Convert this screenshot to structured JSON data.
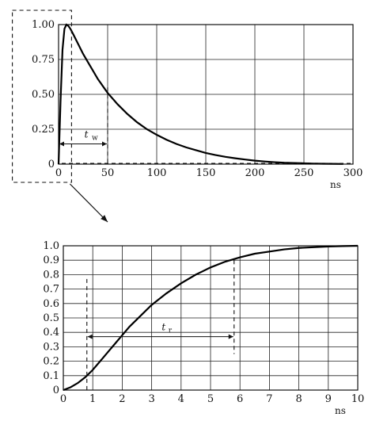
{
  "chart_data": [
    {
      "type": "line",
      "title": "",
      "xlabel": "ns",
      "ylabel": "",
      "xlim": [
        0,
        300
      ],
      "ylim": [
        0,
        1.0
      ],
      "x_ticks": [
        "0",
        "50",
        "100",
        "150",
        "200",
        "250",
        "300"
      ],
      "y_ticks": [
        "0",
        "0.25",
        "0.50",
        "0.75",
        "1.00"
      ],
      "grid": true,
      "annotation": "t",
      "annotation_sub": "w",
      "annotation_range": [
        0,
        50
      ],
      "zoom_region_x": [
        -10,
        10
      ],
      "series": [
        {
          "x": [
            0,
            2,
            4,
            6,
            8,
            10,
            12,
            15,
            20,
            25,
            30,
            35,
            40,
            45,
            50,
            60,
            70,
            80,
            90,
            100,
            110,
            120,
            130,
            140,
            150,
            160,
            170,
            180,
            190,
            200,
            210,
            220,
            230,
            240,
            250,
            260,
            270,
            280,
            290
          ],
          "y": [
            0,
            0.45,
            0.82,
            0.97,
            1.0,
            0.99,
            0.97,
            0.93,
            0.86,
            0.79,
            0.73,
            0.67,
            0.61,
            0.56,
            0.51,
            0.43,
            0.36,
            0.3,
            0.25,
            0.21,
            0.175,
            0.145,
            0.12,
            0.1,
            0.08,
            0.065,
            0.052,
            0.042,
            0.033,
            0.025,
            0.019,
            0.014,
            0.01,
            0.008,
            0.006,
            0.004,
            0.003,
            0.002,
            0.001
          ]
        }
      ]
    },
    {
      "type": "line",
      "title": "",
      "xlabel": "ns",
      "ylabel": "",
      "xlim": [
        0,
        10
      ],
      "ylim": [
        0,
        1.0
      ],
      "x_ticks": [
        "0",
        "1",
        "2",
        "3",
        "4",
        "5",
        "6",
        "7",
        "8",
        "9",
        "10"
      ],
      "y_ticks": [
        "0",
        "0.1",
        "0.2",
        "0.3",
        "0.4",
        "0.5",
        "0.6",
        "0.7",
        "0.8",
        "0.9",
        "1.0"
      ],
      "grid": true,
      "annotation": "t",
      "annotation_sub": "r",
      "annotation_range": [
        0.8,
        5.8
      ],
      "series": [
        {
          "x": [
            0,
            0.25,
            0.5,
            0.75,
            1.0,
            1.25,
            1.5,
            1.75,
            2.0,
            2.25,
            2.5,
            2.75,
            3.0,
            3.5,
            4.0,
            4.5,
            5.0,
            5.5,
            6.0,
            6.5,
            7.0,
            7.5,
            8.0,
            8.5,
            9.0,
            9.5,
            10.0
          ],
          "y": [
            0,
            0.02,
            0.05,
            0.09,
            0.14,
            0.2,
            0.26,
            0.32,
            0.38,
            0.44,
            0.49,
            0.54,
            0.59,
            0.67,
            0.74,
            0.8,
            0.85,
            0.89,
            0.92,
            0.945,
            0.96,
            0.975,
            0.985,
            0.99,
            0.995,
            0.998,
            1.0
          ]
        }
      ]
    }
  ]
}
